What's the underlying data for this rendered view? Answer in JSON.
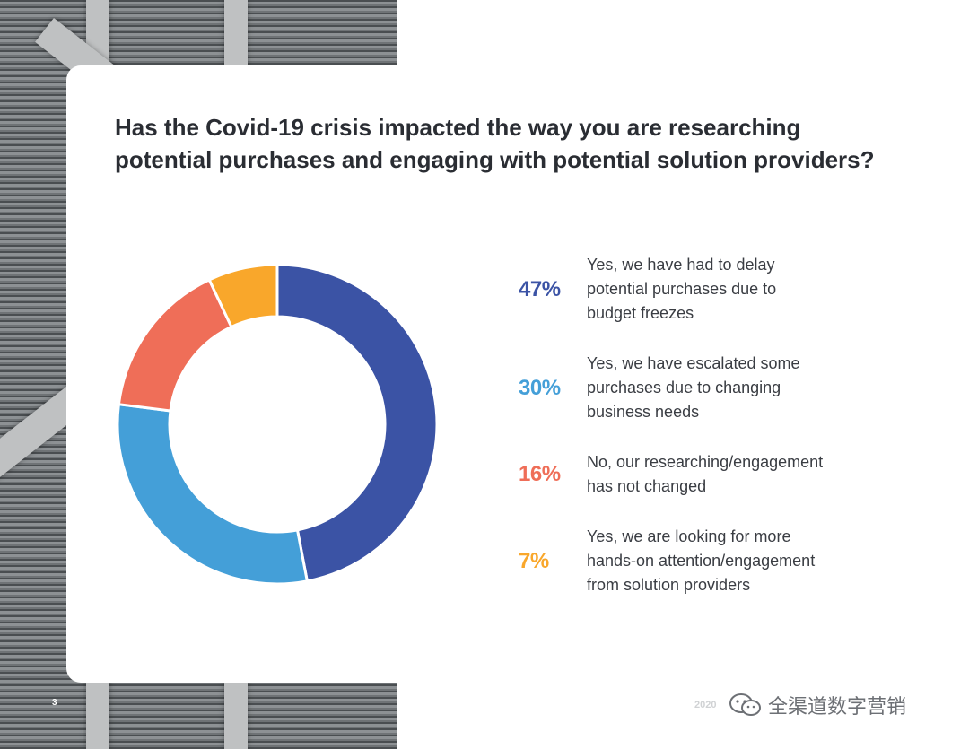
{
  "title": "Has the Covid-19 crisis impacted the way you are researching\npotential purchases and engaging with potential solution providers?",
  "colors": {
    "dark_blue": "#3b53a5",
    "light_blue": "#449fd8",
    "coral": "#ef6e58",
    "orange": "#f9a72b"
  },
  "legend": [
    {
      "pct": "47%",
      "text": "Yes, we have had to delay\npotential purchases due to\nbudget freezes",
      "color": "#3b53a5"
    },
    {
      "pct": "30%",
      "text": "Yes, we have escalated some\npurchases due to changing\nbusiness needs",
      "color": "#449fd8"
    },
    {
      "pct": "16%",
      "text": "No, our researching/engagement\nhas not changed",
      "color": "#ef6e58"
    },
    {
      "pct": "7%",
      "text": "Yes, we are looking for more\nhands-on attention/engagement\nfrom solution providers",
      "color": "#f9a72b"
    }
  ],
  "chart_data": {
    "type": "pie",
    "title": "Has the Covid-19 crisis impacted the way you are researching potential purchases and engaging with potential solution providers?",
    "categories": [
      "Yes, we have had to delay potential purchases due to budget freezes",
      "Yes, we have escalated some purchases due to changing business needs",
      "No, our researching/engagement has not changed",
      "Yes, we are looking for more hands-on attention/engagement from solution providers"
    ],
    "values": [
      47,
      30,
      16,
      7
    ],
    "colors": [
      "#3b53a5",
      "#449fd8",
      "#ef6e58",
      "#f9a72b"
    ],
    "donut": true
  },
  "footer": {
    "page": "3",
    "year": "2020",
    "watermark": "全渠道数字营销"
  }
}
